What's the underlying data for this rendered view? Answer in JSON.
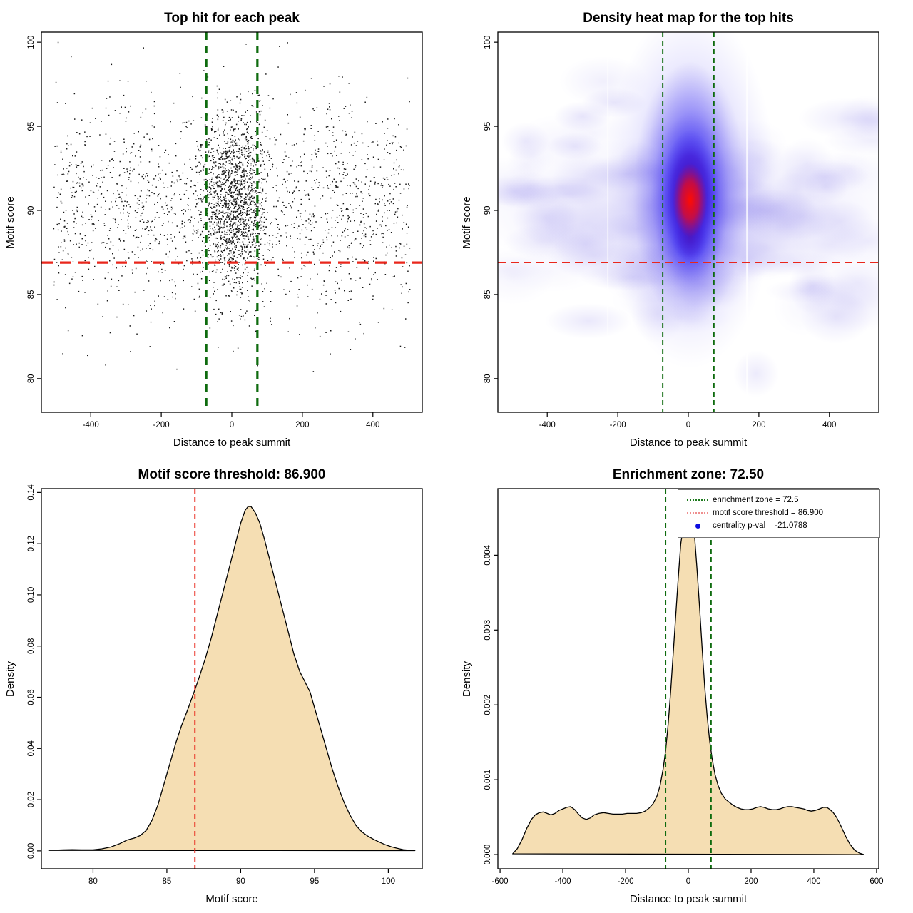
{
  "figure": {
    "background": "#ffffff",
    "layout": "2x2 R base-graphics panels"
  },
  "thresholds": {
    "motif_score_threshold": 86.9,
    "enrichment_zone_half_width": 72.5,
    "centrality_pval": -21.0788
  },
  "colors": {
    "enrichment_line_green": "#0e6b0e",
    "threshold_line_red": "#e9261b",
    "density_fill_wheat": "#f5deb3",
    "curve_stroke": "#000000",
    "scatter_point": "#000000",
    "legend_point_blue": "#0d0de0",
    "heat_palette": [
      "#ffffff",
      "#b9b0f2",
      "#2317f2",
      "#53089e",
      "#ff0c02"
    ]
  },
  "chart_data": [
    {
      "id": "top-hit-scatter",
      "type": "scatter",
      "title": "Top hit for each peak",
      "xlabel": "Distance to peak summit",
      "ylabel": "Motif score",
      "xticks": [
        "-400",
        "-200",
        "0",
        "200",
        "400"
      ],
      "yticks": [
        "80",
        "85",
        "90",
        "95",
        "100"
      ],
      "xlim": [
        -540,
        540
      ],
      "ylim": [
        78.0,
        100.6
      ],
      "grid": false,
      "n_points": 3200,
      "central_fraction": 0.44,
      "central_cluster": {
        "x_mean": 5,
        "x_sd": 46,
        "y_mean": 90.6,
        "y_sd": 2.6
      },
      "background_cloud": {
        "x_halfwidth": 505,
        "y_mean": 90.3,
        "y_sd": 3.3
      },
      "score_cap": 100.0,
      "hline_motif_threshold": 86.9,
      "vlines_enrichment": [
        -72.5,
        72.5
      ]
    },
    {
      "id": "density-heatmap",
      "type": "heatmap",
      "title": "Density heat map for the top hits",
      "xlabel": "Distance to peak summit",
      "ylabel": "Motif score",
      "xticks": [
        "-400",
        "-200",
        "0",
        "200",
        "400"
      ],
      "yticks": [
        "80",
        "85",
        "90",
        "95",
        "100"
      ],
      "xlim": [
        -540,
        540
      ],
      "ylim": [
        78.0,
        100.6
      ],
      "hotspot": {
        "x": 5,
        "y": 90.6
      },
      "ridge_y_band": [
        85,
        95
      ],
      "white_seams_x": [
        -228,
        166
      ],
      "hline_motif_threshold": 86.9,
      "vlines_enrichment": [
        -72.5,
        72.5
      ]
    },
    {
      "id": "motif-score-density",
      "type": "area",
      "title": "Motif score threshold: 86.900",
      "xlabel": "Motif score",
      "ylabel": "Density",
      "xticks": [
        "80",
        "85",
        "90",
        "95",
        "100"
      ],
      "yticks": [
        "0.00",
        "0.02",
        "0.04",
        "0.06",
        "0.08",
        "0.10",
        "0.12",
        "0.14"
      ],
      "xlim": [
        76.5,
        102.3
      ],
      "ylim": [
        -0.007,
        0.1415
      ],
      "threshold_x": 86.9,
      "peak": {
        "x": 90.5,
        "density": 0.1345
      },
      "curve": [
        [
          77.0,
          0.0002
        ],
        [
          78.0,
          0.0004
        ],
        [
          78.6,
          0.0005
        ],
        [
          79.2,
          0.0004
        ],
        [
          80.0,
          0.0004
        ],
        [
          80.6,
          0.0008
        ],
        [
          81.2,
          0.0015
        ],
        [
          81.8,
          0.0028
        ],
        [
          82.3,
          0.0042
        ],
        [
          82.8,
          0.005
        ],
        [
          83.2,
          0.006
        ],
        [
          83.6,
          0.008
        ],
        [
          84.0,
          0.012
        ],
        [
          84.4,
          0.018
        ],
        [
          84.8,
          0.026
        ],
        [
          85.2,
          0.034
        ],
        [
          85.6,
          0.042
        ],
        [
          86.0,
          0.049
        ],
        [
          86.4,
          0.055
        ],
        [
          86.9,
          0.063
        ],
        [
          87.2,
          0.068
        ],
        [
          87.6,
          0.075
        ],
        [
          88.0,
          0.083
        ],
        [
          88.4,
          0.092
        ],
        [
          88.8,
          0.101
        ],
        [
          89.2,
          0.11
        ],
        [
          89.6,
          0.119
        ],
        [
          90.0,
          0.128
        ],
        [
          90.3,
          0.133
        ],
        [
          90.5,
          0.1345
        ],
        [
          90.7,
          0.1345
        ],
        [
          91.0,
          0.132
        ],
        [
          91.3,
          0.128
        ],
        [
          91.6,
          0.122
        ],
        [
          92.0,
          0.113
        ],
        [
          92.4,
          0.104
        ],
        [
          92.8,
          0.095
        ],
        [
          93.2,
          0.086
        ],
        [
          93.6,
          0.077
        ],
        [
          94.0,
          0.07
        ],
        [
          94.4,
          0.0655
        ],
        [
          94.7,
          0.062
        ],
        [
          95.0,
          0.056
        ],
        [
          95.4,
          0.048
        ],
        [
          95.8,
          0.04
        ],
        [
          96.2,
          0.032
        ],
        [
          96.6,
          0.025
        ],
        [
          97.0,
          0.019
        ],
        [
          97.4,
          0.014
        ],
        [
          97.8,
          0.01
        ],
        [
          98.2,
          0.0075
        ],
        [
          98.6,
          0.0058
        ],
        [
          99.0,
          0.0045
        ],
        [
          99.4,
          0.0034
        ],
        [
          99.8,
          0.0024
        ],
        [
          100.2,
          0.0016
        ],
        [
          100.6,
          0.001
        ],
        [
          101.0,
          0.0005
        ],
        [
          101.5,
          0.0002
        ],
        [
          101.8,
          0.0001
        ]
      ]
    },
    {
      "id": "distance-density",
      "type": "area",
      "title": "Enrichment zone: 72.50",
      "xlabel": "Distance to peak summit",
      "ylabel": "Density",
      "xticks": [
        "-600",
        "-400",
        "-200",
        "0",
        "200",
        "400",
        "600"
      ],
      "yticks": [
        "0.000",
        "0.001",
        "0.002",
        "0.003",
        "0.004"
      ],
      "xlim": [
        -607,
        607
      ],
      "ylim": [
        -0.00019,
        0.00489
      ],
      "vlines_enrichment": [
        -72.5,
        72.5
      ],
      "peak": {
        "x": 0,
        "density": 0.0047
      },
      "curve": [
        [
          -560,
          1e-05
        ],
        [
          -545,
          8e-05
        ],
        [
          -530,
          0.0002
        ],
        [
          -515,
          0.00035
        ],
        [
          -500,
          0.00047
        ],
        [
          -488,
          0.00053
        ],
        [
          -475,
          0.00056
        ],
        [
          -462,
          0.00057
        ],
        [
          -450,
          0.00055
        ],
        [
          -438,
          0.00053
        ],
        [
          -425,
          0.00055
        ],
        [
          -412,
          0.00059
        ],
        [
          -400,
          0.00061
        ],
        [
          -388,
          0.00063
        ],
        [
          -375,
          0.00064
        ],
        [
          -362,
          0.0006
        ],
        [
          -350,
          0.00054
        ],
        [
          -338,
          0.00049
        ],
        [
          -325,
          0.00047
        ],
        [
          -312,
          0.00049
        ],
        [
          -300,
          0.00053
        ],
        [
          -285,
          0.00055
        ],
        [
          -270,
          0.00056
        ],
        [
          -255,
          0.00055
        ],
        [
          -240,
          0.00054
        ],
        [
          -225,
          0.00054
        ],
        [
          -210,
          0.00054
        ],
        [
          -195,
          0.00055
        ],
        [
          -180,
          0.00055
        ],
        [
          -165,
          0.00055
        ],
        [
          -150,
          0.00056
        ],
        [
          -138,
          0.00058
        ],
        [
          -125,
          0.00062
        ],
        [
          -112,
          0.00068
        ],
        [
          -100,
          0.00078
        ],
        [
          -90,
          0.00092
        ],
        [
          -80,
          0.00115
        ],
        [
          -72,
          0.0014
        ],
        [
          -64,
          0.00175
        ],
        [
          -56,
          0.0022
        ],
        [
          -48,
          0.0027
        ],
        [
          -40,
          0.0032
        ],
        [
          -32,
          0.0037
        ],
        [
          -24,
          0.00415
        ],
        [
          -16,
          0.0044
        ],
        [
          -8,
          0.00462
        ],
        [
          0,
          0.0047
        ],
        [
          6,
          0.00468
        ],
        [
          12,
          0.00455
        ],
        [
          20,
          0.00425
        ],
        [
          28,
          0.0038
        ],
        [
          36,
          0.0033
        ],
        [
          44,
          0.00275
        ],
        [
          52,
          0.00225
        ],
        [
          60,
          0.00185
        ],
        [
          68,
          0.00152
        ],
        [
          76,
          0.00128
        ],
        [
          85,
          0.00107
        ],
        [
          95,
          0.00092
        ],
        [
          105,
          0.00082
        ],
        [
          118,
          0.00074
        ],
        [
          130,
          0.0007
        ],
        [
          142,
          0.00066
        ],
        [
          155,
          0.00063
        ],
        [
          168,
          0.00061
        ],
        [
          180,
          0.0006
        ],
        [
          192,
          0.0006
        ],
        [
          205,
          0.00061
        ],
        [
          218,
          0.00063
        ],
        [
          230,
          0.00064
        ],
        [
          242,
          0.00063
        ],
        [
          255,
          0.00061
        ],
        [
          268,
          0.0006
        ],
        [
          280,
          0.0006
        ],
        [
          292,
          0.00061
        ],
        [
          305,
          0.00063
        ],
        [
          318,
          0.00064
        ],
        [
          330,
          0.00064
        ],
        [
          342,
          0.00063
        ],
        [
          355,
          0.00062
        ],
        [
          368,
          0.00061
        ],
        [
          380,
          0.00059
        ],
        [
          392,
          0.00058
        ],
        [
          405,
          0.00059
        ],
        [
          418,
          0.00061
        ],
        [
          430,
          0.00063
        ],
        [
          442,
          0.00063
        ],
        [
          452,
          0.0006
        ],
        [
          462,
          0.00056
        ],
        [
          472,
          0.0005
        ],
        [
          482,
          0.00042
        ],
        [
          492,
          0.00033
        ],
        [
          502,
          0.00024
        ],
        [
          515,
          0.00014
        ],
        [
          530,
          6e-05
        ],
        [
          545,
          2e-05
        ],
        [
          560,
          0.0
        ]
      ],
      "legend": {
        "items": [
          {
            "label": "enrichment zone = 72.5",
            "symbol": "dotted-line",
            "color": "#1d7a1d"
          },
          {
            "label": "motif score threshold = 86.900",
            "symbol": "dotted-line",
            "color": "#ef8f8f"
          },
          {
            "label": "centrality p-val = -21.0788",
            "symbol": "point",
            "color": "#0d0de0"
          }
        ]
      }
    }
  ]
}
